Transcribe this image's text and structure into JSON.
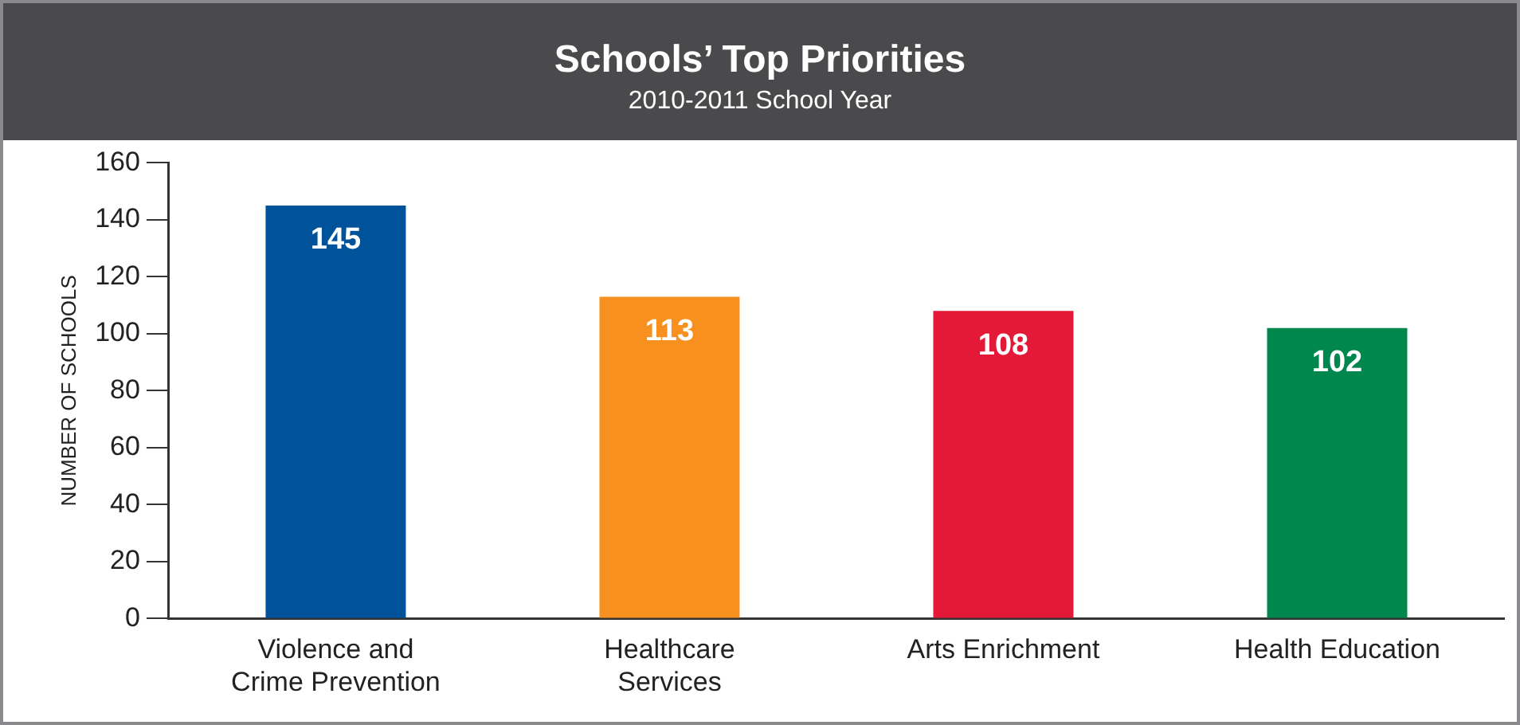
{
  "chart_data": {
    "type": "bar",
    "title": "Schools’ Top Priorities",
    "subtitle": "2010-2011 School Year",
    "ylabel": "NUMBER OF SCHOOLS",
    "categories": [
      "Violence and Crime Prevention",
      "Healthcare Services",
      "Arts Enrichment",
      "Health Education"
    ],
    "values": [
      145,
      113,
      108,
      102
    ],
    "colors": [
      "#00529b",
      "#f7901e",
      "#e31937",
      "#00874e"
    ],
    "ylim": [
      0,
      160
    ],
    "yticks": [
      0,
      20,
      40,
      60,
      80,
      100,
      120,
      140,
      160
    ],
    "grid": false,
    "legend": false,
    "data_labels": true
  }
}
